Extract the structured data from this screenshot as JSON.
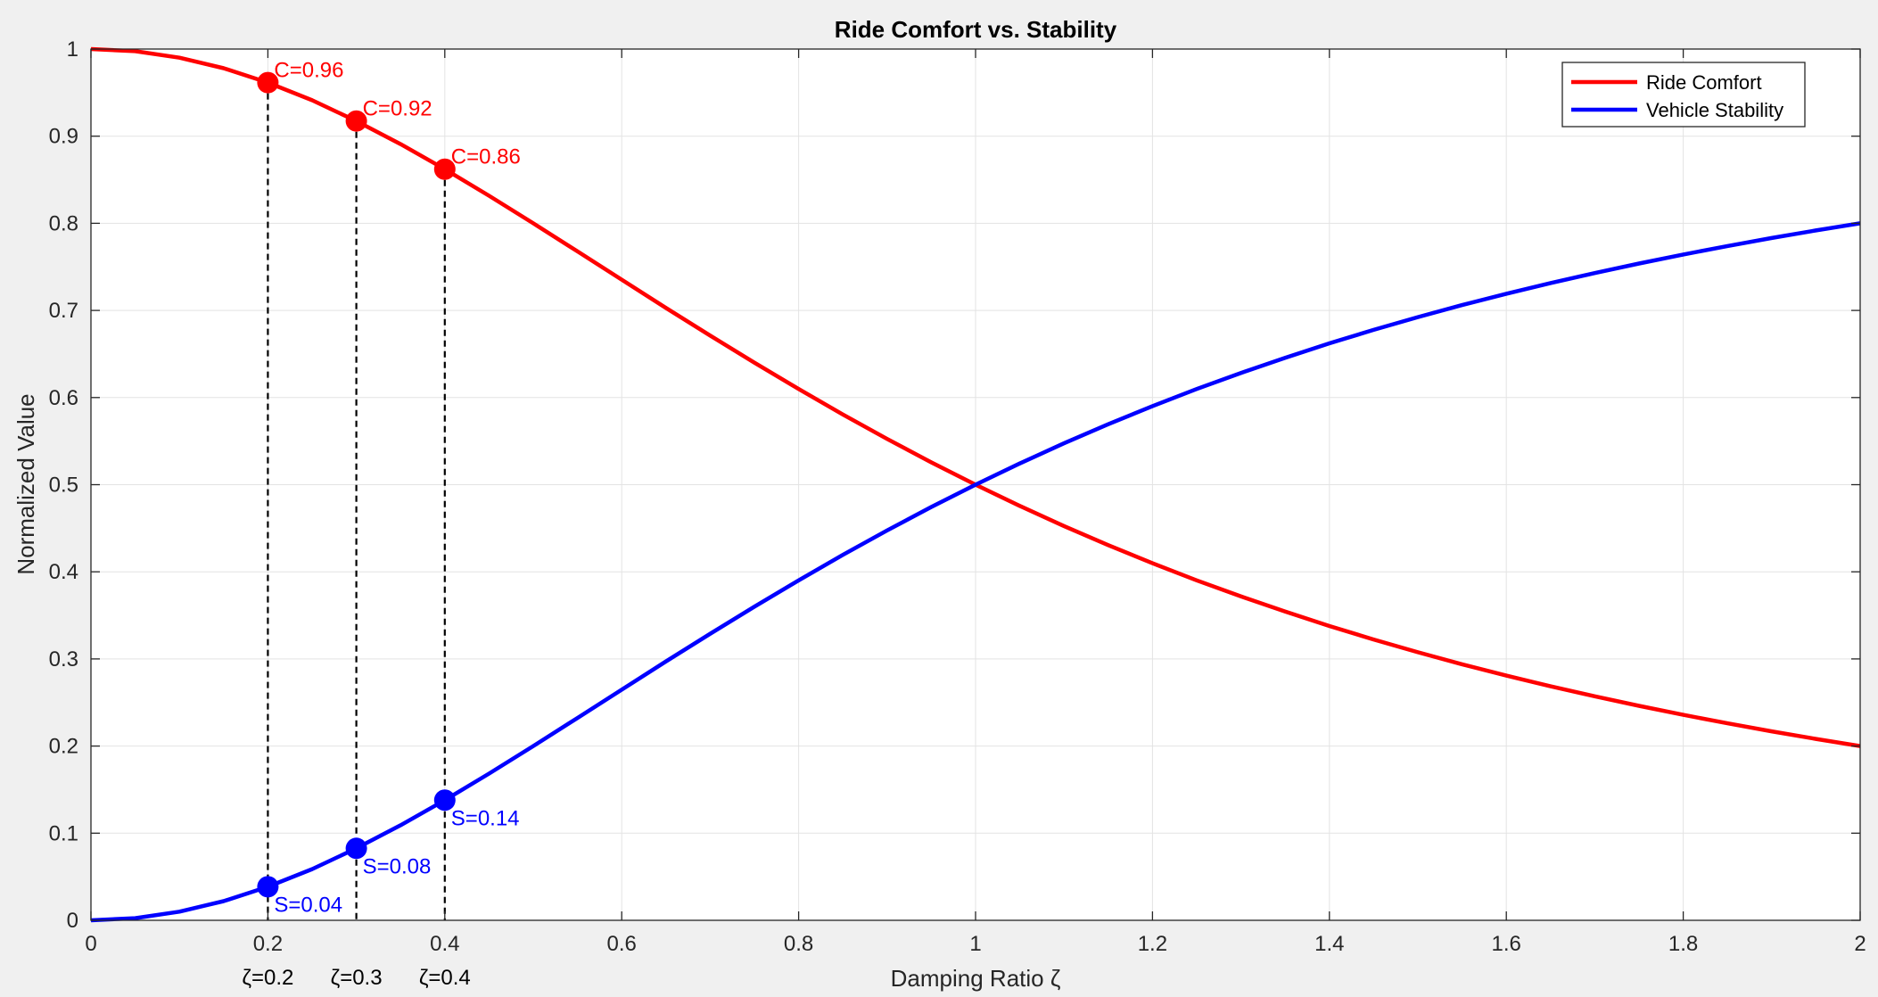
{
  "chart_data": {
    "type": "line",
    "title": "Ride Comfort vs. Stability",
    "xlabel": "Damping Ratio ζ",
    "ylabel": "Normalized Value",
    "xlim": [
      0,
      2
    ],
    "ylim": [
      0,
      1
    ],
    "xticks": [
      0,
      0.2,
      0.4,
      0.6,
      0.8,
      1,
      1.2,
      1.4,
      1.6,
      1.8,
      2
    ],
    "xtick_labels": [
      "0",
      "0.2",
      "0.4",
      "0.6",
      "0.8",
      "1",
      "1.2",
      "1.4",
      "1.6",
      "1.8",
      "2"
    ],
    "yticks": [
      0,
      0.1,
      0.2,
      0.3,
      0.4,
      0.5,
      0.6,
      0.7,
      0.8,
      0.9,
      1
    ],
    "ytick_labels": [
      "0",
      "0.1",
      "0.2",
      "0.3",
      "0.4",
      "0.5",
      "0.6",
      "0.7",
      "0.8",
      "0.9",
      "1"
    ],
    "grid": true,
    "legend_position": "top-right",
    "x": [
      0,
      0.05,
      0.1,
      0.15,
      0.2,
      0.25,
      0.3,
      0.35,
      0.4,
      0.45,
      0.5,
      0.55,
      0.6,
      0.65,
      0.7,
      0.75,
      0.8,
      0.85,
      0.9,
      0.95,
      1,
      1.05,
      1.1,
      1.15,
      1.2,
      1.25,
      1.3,
      1.35,
      1.4,
      1.45,
      1.5,
      1.55,
      1.6,
      1.65,
      1.7,
      1.75,
      1.8,
      1.85,
      1.9,
      1.95,
      2
    ],
    "series": [
      {
        "name": "Ride Comfort",
        "color": "#ff0000",
        "values": [
          1.0,
          0.9975,
          0.9901,
          0.978,
          0.9615,
          0.9412,
          0.9174,
          0.8909,
          0.8621,
          0.8316,
          0.8,
          0.7678,
          0.7353,
          0.7029,
          0.6711,
          0.64,
          0.6098,
          0.5806,
          0.5525,
          0.5256,
          0.5,
          0.4756,
          0.4525,
          0.4306,
          0.4098,
          0.3902,
          0.3717,
          0.3543,
          0.3378,
          0.3223,
          0.3077,
          0.2939,
          0.2809,
          0.2686,
          0.2571,
          0.2462,
          0.2358,
          0.2261,
          0.2169,
          0.2082,
          0.2
        ]
      },
      {
        "name": "Vehicle Stability",
        "color": "#0000ff",
        "values": [
          0.0,
          0.0025,
          0.0099,
          0.022,
          0.0385,
          0.0588,
          0.0826,
          0.1091,
          0.1379,
          0.1684,
          0.2,
          0.2322,
          0.2647,
          0.2971,
          0.3289,
          0.36,
          0.3902,
          0.4194,
          0.4475,
          0.4744,
          0.5,
          0.5244,
          0.5475,
          0.5694,
          0.5902,
          0.6098,
          0.6283,
          0.6457,
          0.6622,
          0.6777,
          0.6923,
          0.7061,
          0.7191,
          0.7314,
          0.7429,
          0.7538,
          0.7642,
          0.7739,
          0.7831,
          0.7918,
          0.8
        ]
      }
    ],
    "markers": [
      {
        "x": 0.2,
        "comfort": 0.9615,
        "stability": 0.0385,
        "comfort_label": "C=0.96",
        "stability_label": "S=0.04",
        "x_label": "ζ=0.2"
      },
      {
        "x": 0.3,
        "comfort": 0.9174,
        "stability": 0.0826,
        "comfort_label": "C=0.92",
        "stability_label": "S=0.08",
        "x_label": "ζ=0.3"
      },
      {
        "x": 0.4,
        "comfort": 0.8621,
        "stability": 0.1379,
        "comfort_label": "C=0.86",
        "stability_label": "S=0.14",
        "x_label": "ζ=0.4"
      }
    ]
  }
}
